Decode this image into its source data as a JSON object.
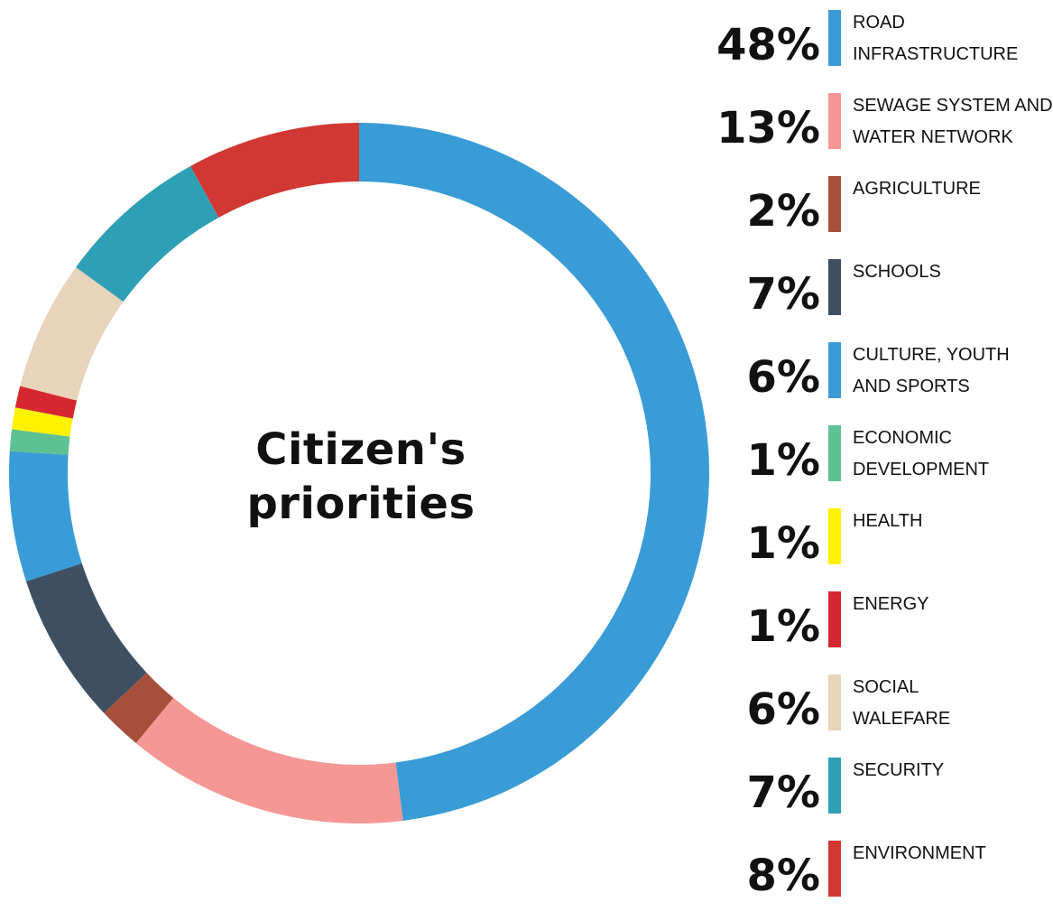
{
  "center_title_line1": "Citizen's",
  "center_title_line2": "priorities",
  "chart_data": {
    "type": "pie",
    "variant": "donut",
    "title": "Citizen's priorities",
    "categories": [
      "ROAD INFRASTRUCTURE",
      "SEWAGE SYSTEM AND WATER NETWORK",
      "AGRICULTURE",
      "SCHOOLS",
      "CULTURE, YOUTH AND SPORTS",
      "ECONOMIC DEVELOPMENT",
      "HEALTH",
      "ENERGY",
      "SOCIAL WALEFARE",
      "SECURITY",
      "ENVIRONMENT"
    ],
    "values": [
      48,
      13,
      2,
      7,
      6,
      1,
      1,
      1,
      6,
      7,
      8
    ],
    "value_labels": [
      "48%",
      "13%",
      "2%",
      "7%",
      "6%",
      "1%",
      "1%",
      "1%",
      "6%",
      "7%",
      "8%"
    ],
    "label_lines": [
      [
        "ROAD",
        "INFRASTRUCTURE"
      ],
      [
        "SEWAGE SYSTEM AND",
        "WATER NETWORK"
      ],
      [
        "AGRICULTURE"
      ],
      [
        "SCHOOLS"
      ],
      [
        "CULTURE, YOUTH",
        "AND SPORTS"
      ],
      [
        "ECONOMIC",
        "DEVELOPMENT"
      ],
      [
        "HEALTH"
      ],
      [
        "ENERGY"
      ],
      [
        "SOCIAL",
        "WALEFARE"
      ],
      [
        "SECURITY"
      ],
      [
        "ENVIRONMENT"
      ]
    ],
    "colors": [
      "#3A9CD6",
      "#F59795",
      "#A6503C",
      "#3D4F61",
      "#3A9CD6",
      "#5EC192",
      "#FFF200",
      "#D62731",
      "#E8D3BB",
      "#2EA0B5",
      "#D13733"
    ],
    "legend_position": "right"
  }
}
